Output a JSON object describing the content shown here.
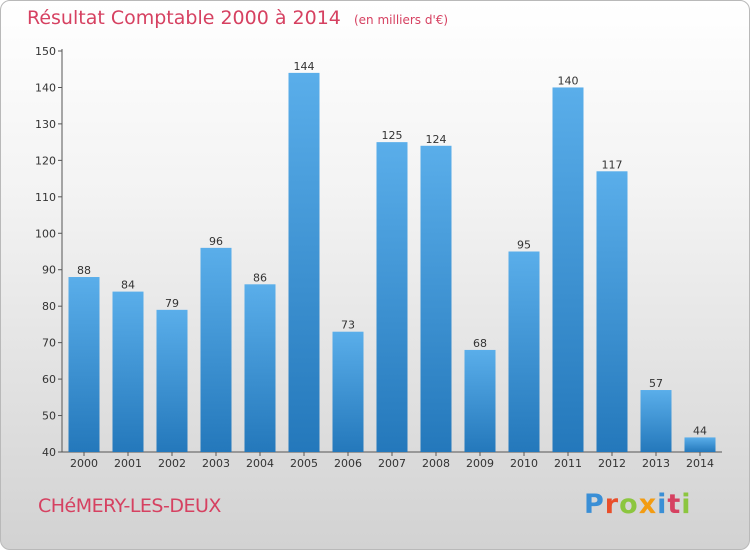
{
  "header": {
    "title": "Résultat Comptable 2000 à 2014",
    "subtitle": "(en milliers d'€)"
  },
  "commune": "CHéMERY-LES-DEUX",
  "logo": {
    "text": "Proxiti",
    "letters": [
      "P",
      "r",
      "o",
      "x",
      "i",
      "t",
      "i"
    ]
  },
  "colors": {
    "bar_top": "#5aaeea",
    "bar_bottom": "#2478bb",
    "accent": "#d64161"
  },
  "chart_data": {
    "type": "bar",
    "title": "Résultat Comptable 2000 à 2014",
    "subtitle": "(en milliers d'€)",
    "categories": [
      "2000",
      "2001",
      "2002",
      "2003",
      "2004",
      "2005",
      "2006",
      "2007",
      "2008",
      "2009",
      "2010",
      "2011",
      "2012",
      "2013",
      "2014"
    ],
    "values": [
      88,
      84,
      79,
      96,
      86,
      144,
      73,
      125,
      124,
      68,
      95,
      140,
      117,
      57,
      44
    ],
    "ylim": [
      40,
      150
    ],
    "yticks": [
      40,
      50,
      60,
      70,
      80,
      90,
      100,
      110,
      120,
      130,
      140,
      150
    ],
    "xlabel": "",
    "ylabel": "",
    "grid": false
  }
}
